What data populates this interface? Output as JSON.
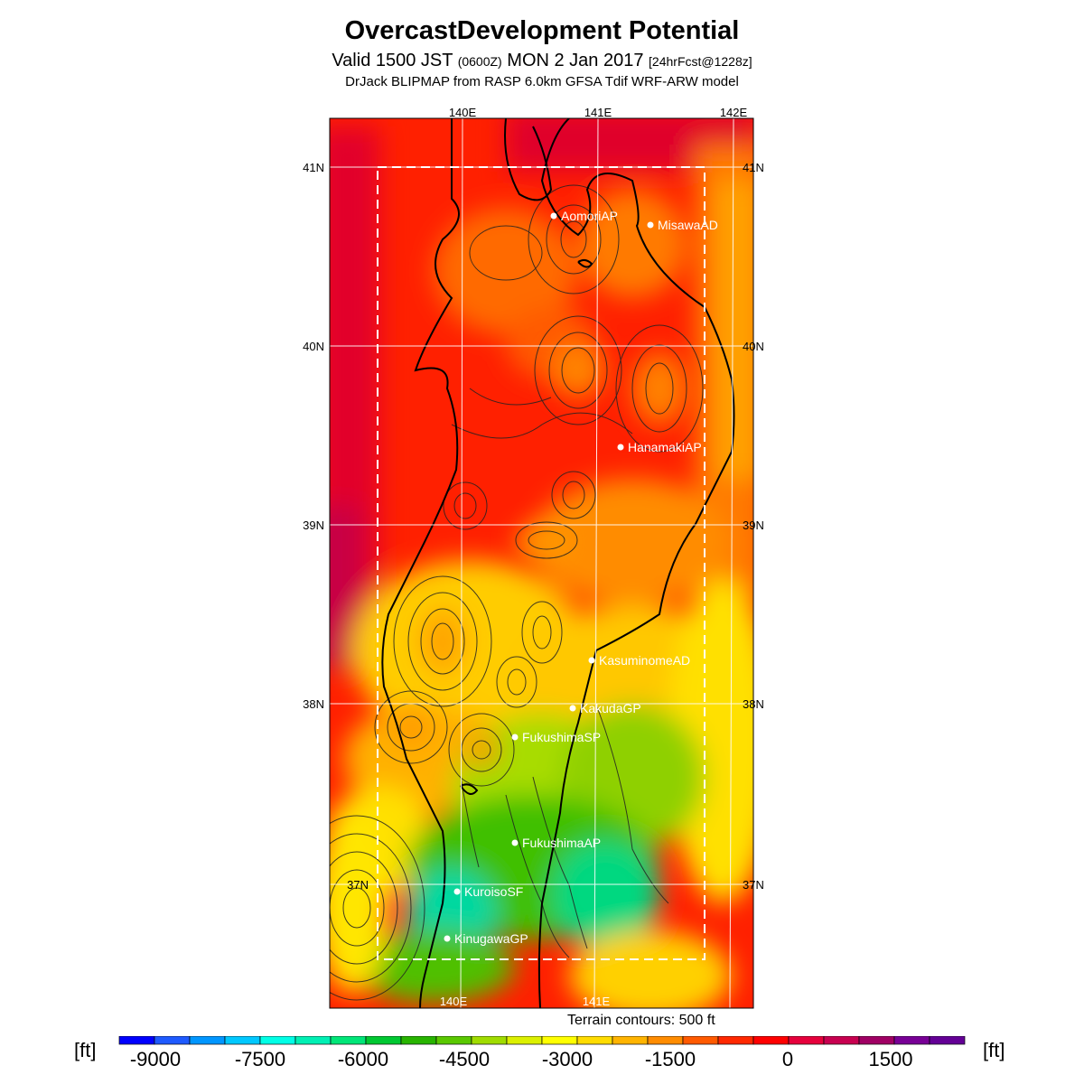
{
  "header": {
    "title": "OvercastDevelopment Potential",
    "valid_prefix": "Valid 1500 JST",
    "valid_utc": "(0600Z)",
    "valid_date": "MON 2 Jan 2017",
    "forecast_info": "[24hrFcst@1228z]",
    "model_line": "DrJack BLIPMAP from RASP 6.0km GFSA Tdif WRF-ARW model"
  },
  "map": {
    "lon_labels": [
      "140E",
      "141E",
      "142E"
    ],
    "lat_labels": [
      "41N",
      "40N",
      "39N",
      "38N",
      "37N"
    ],
    "stations": [
      {
        "name": "AomoriAP"
      },
      {
        "name": "MisawaAD"
      },
      {
        "name": "HanamakiAP"
      },
      {
        "name": "KasuminomeAD"
      },
      {
        "name": "KakudaGP"
      },
      {
        "name": "FukushimaSP"
      },
      {
        "name": "FukushimaAP"
      },
      {
        "name": "KuroisoSF"
      },
      {
        "name": "KinugawaGP"
      }
    ]
  },
  "terrain_note": "Terrain contours: 500 ft",
  "colorbar": {
    "unit": "[ft]",
    "tick_labels": [
      "-9000",
      "-7500",
      "-6000",
      "-4500",
      "-3000",
      "-1500",
      "0",
      "1500"
    ],
    "colors": [
      "#0000ff",
      "#1e5aff",
      "#0096ff",
      "#00c8ff",
      "#00ffe6",
      "#00f0b4",
      "#00e678",
      "#00c832",
      "#28b400",
      "#5ac800",
      "#a0dc00",
      "#dcf000",
      "#ffff00",
      "#ffdc00",
      "#ffb400",
      "#ff8c00",
      "#ff5a00",
      "#ff2800",
      "#ff0000",
      "#e6003c",
      "#c80050",
      "#a00064",
      "#780096",
      "#640096"
    ]
  }
}
